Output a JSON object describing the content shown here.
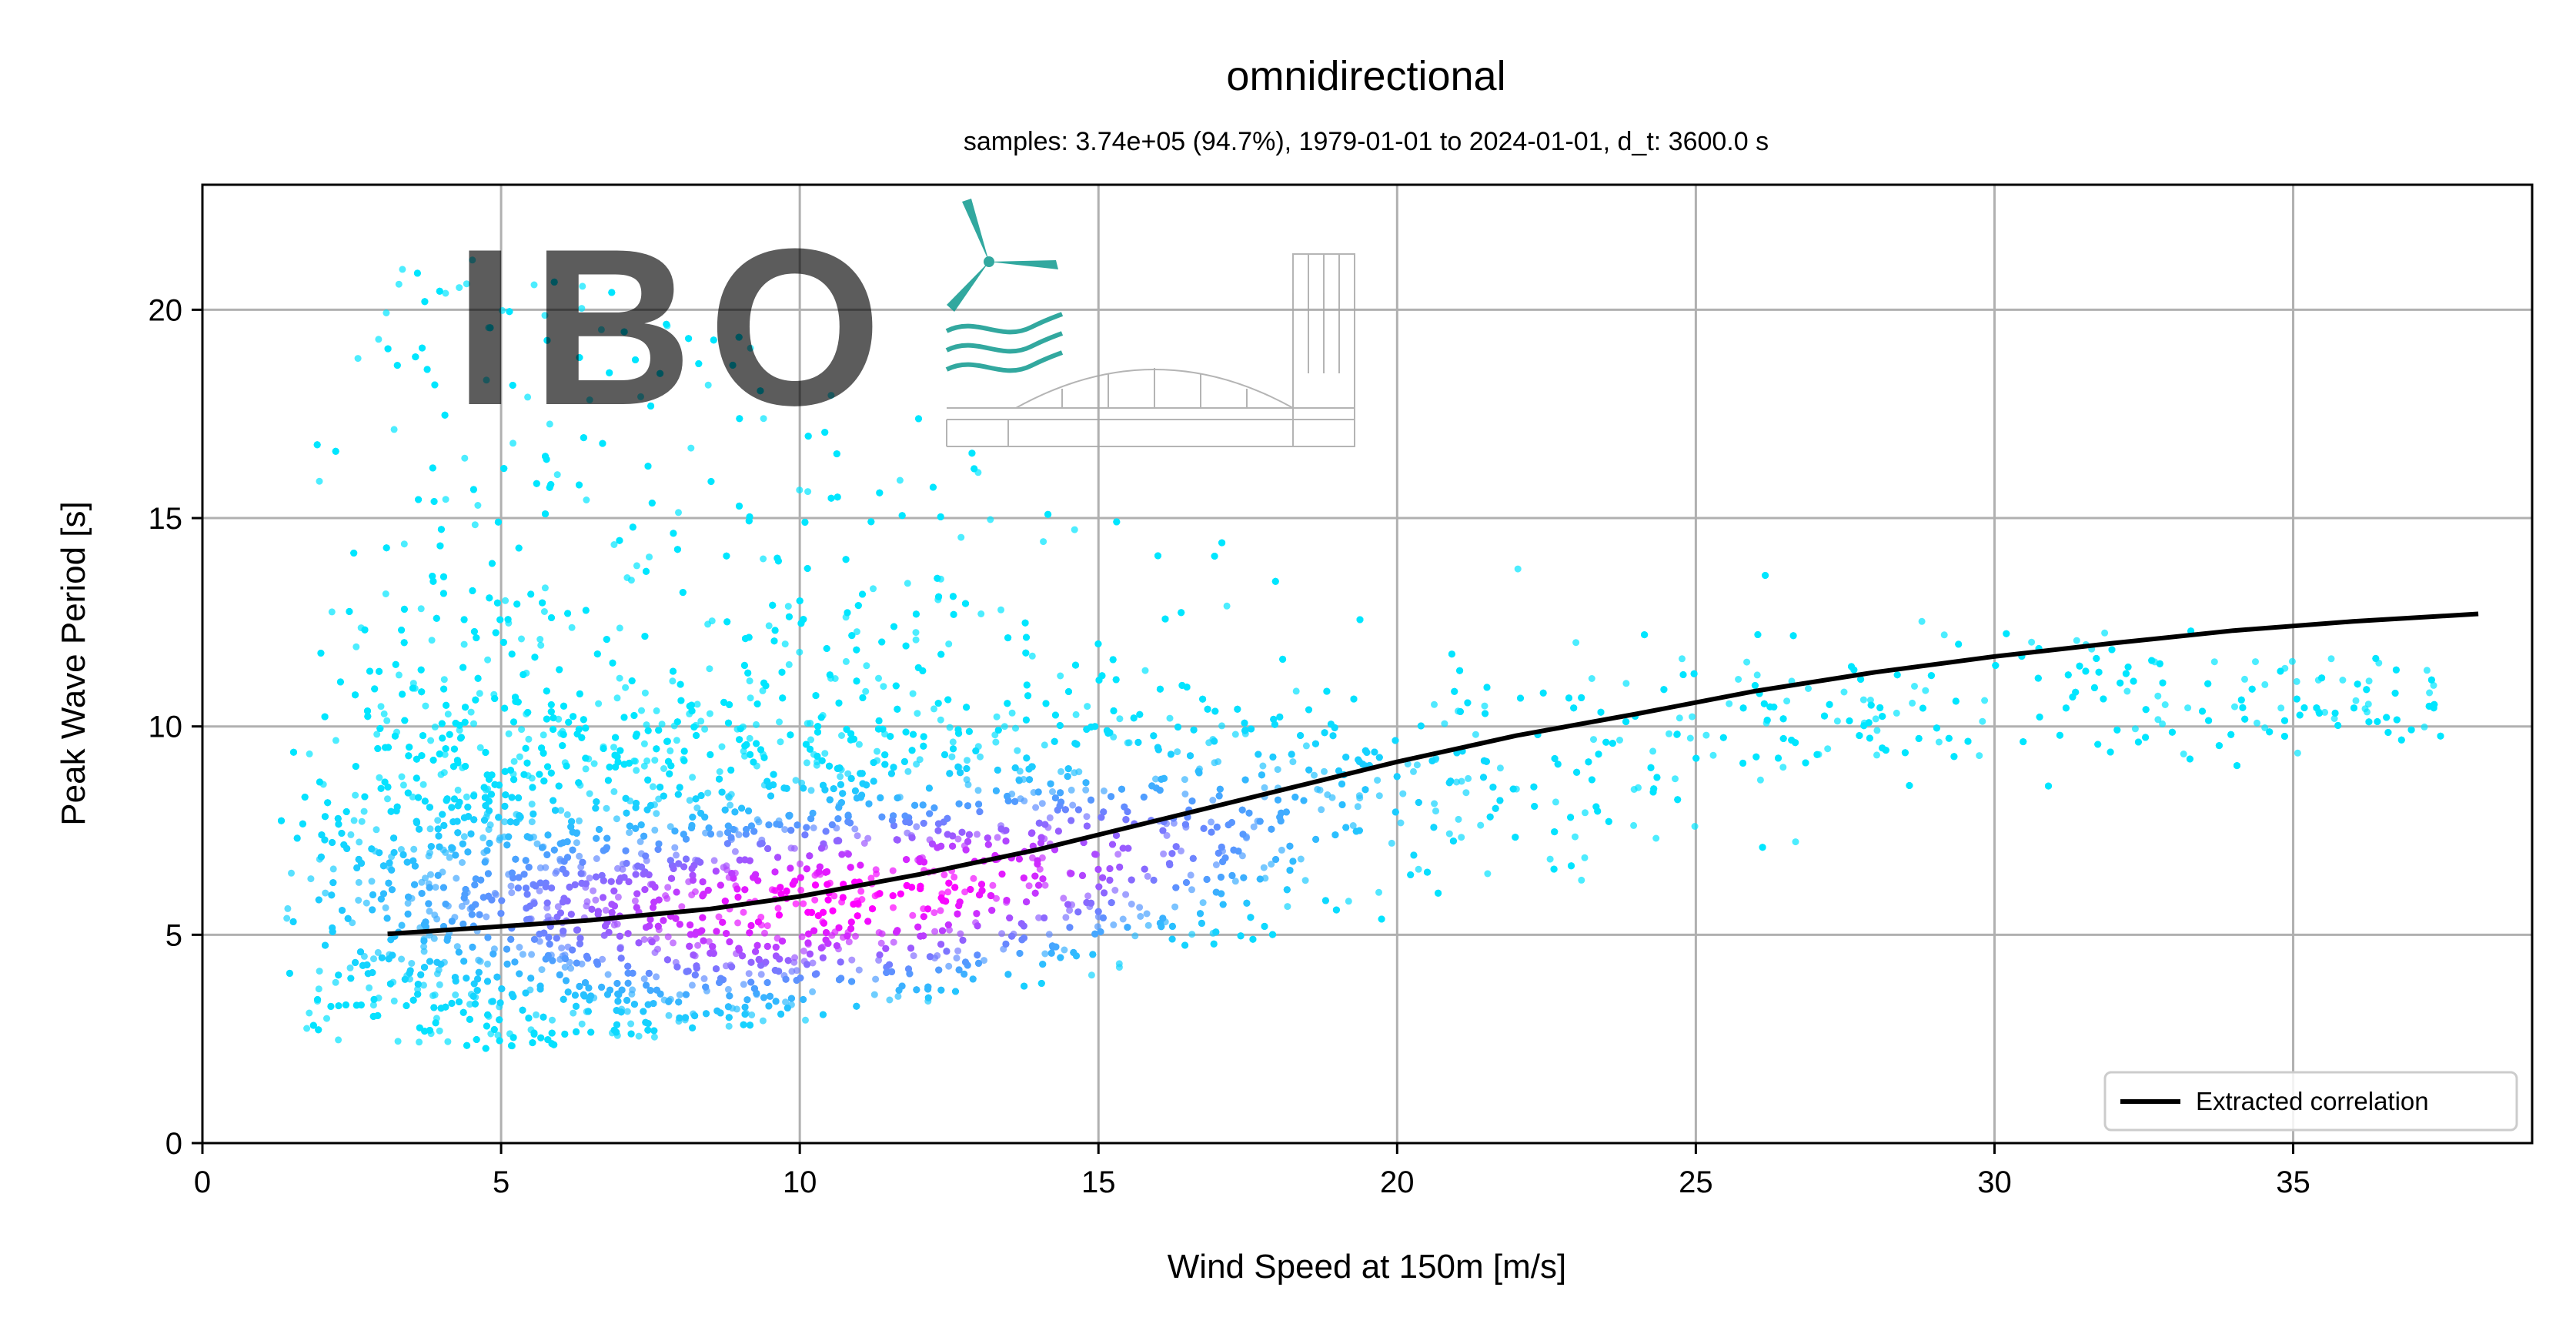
{
  "chart_data": {
    "type": "scatter",
    "title": "omnidirectional",
    "subtitle": "samples: 3.74e+05 (94.7%), 1979-01-01 to 2024-01-01, d_t: 3600.0 s",
    "xlabel": "Wind Speed at 150m [m/s]",
    "ylabel": "Peak Wave Period [s]",
    "xlim": [
      0,
      39
    ],
    "ylim": [
      0,
      23
    ],
    "xticks": [
      0,
      5,
      10,
      15,
      20,
      25,
      30,
      35
    ],
    "yticks": [
      0,
      5,
      10,
      15,
      20
    ],
    "grid": true,
    "legend": {
      "position": "bottom-right",
      "entries": [
        "Extracted correlation"
      ]
    },
    "colormap": {
      "low_density": "#00e5ff",
      "high_density": "#ff00ff"
    },
    "series": [
      {
        "name": "Extracted correlation",
        "kind": "line",
        "color": "#000000",
        "x": [
          3.1,
          5,
          6.5,
          8.5,
          10,
          12,
          14,
          16,
          18,
          20,
          22,
          24,
          26,
          28,
          30,
          32,
          34,
          36,
          38.1
        ],
        "y": [
          5.02,
          5.2,
          5.35,
          5.62,
          5.92,
          6.45,
          7.05,
          7.75,
          8.45,
          9.15,
          9.78,
          10.3,
          10.85,
          11.3,
          11.68,
          12.0,
          12.3,
          12.52,
          12.7
        ]
      }
    ],
    "scatter_envelope": {
      "x": [
        1.3,
        2,
        4,
        6,
        8,
        10,
        12,
        14,
        16,
        18,
        20,
        22,
        24,
        26,
        28,
        30,
        32,
        34,
        36,
        38
      ],
      "y_low": [
        3.0,
        2.8,
        2.5,
        2.6,
        2.9,
        3.2,
        3.6,
        4.1,
        4.6,
        5.2,
        5.7,
        6.3,
        6.8,
        7.3,
        7.8,
        8.3,
        8.8,
        9.3,
        9.7,
        10.2
      ],
      "y_high": [
        16.5,
        20.5,
        21.5,
        21.0,
        20.0,
        19.0,
        17.5,
        15.8,
        14.8,
        14.3,
        14.0,
        13.8,
        13.7,
        13.6,
        13.5,
        13.3,
        13.0,
        12.8,
        12.5,
        12.0
      ],
      "density_center": {
        "x": [
          4,
          8,
          12,
          16,
          20,
          24,
          28
        ],
        "y": [
          5.8,
          5.5,
          6.0,
          7.0,
          8.2,
          9.6,
          10.5
        ]
      }
    }
  },
  "watermark": {
    "text": "IBO"
  }
}
